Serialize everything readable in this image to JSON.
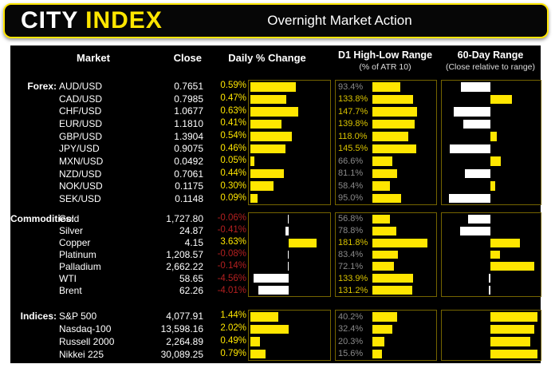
{
  "header": {
    "logo_city": "CITY",
    "logo_index": "INDEX",
    "title": "Overnight Market Action"
  },
  "columns": {
    "market": "Market",
    "close": "Close",
    "daily": "Daily % Change",
    "d1": "D1 High-Low Range",
    "d1_sub": "(% of ATR 10)",
    "range60": "60-Day Range",
    "range60_sub": "(Close relative to range)"
  },
  "colors": {
    "accent_yellow": "#ffe600",
    "negative_red": "#b32020",
    "muted_gray": "#8a8a8a",
    "bar_white": "#ffffff",
    "panel_black": "#000000",
    "box_border_olive": "#756400"
  },
  "chart_data": {
    "type": "table",
    "title": "Overnight Market Action",
    "legend": "Bars: daily % change (yellow = up, white = down), D1 high-low range as % of ATR 10 (yellow value >= 100%), close position within 60-day range (white = below midpoint, yellow = above midpoint)",
    "sections": [
      {
        "label": "Forex:",
        "daily_axis": {
          "min": 0,
          "max": 1.0
        },
        "d1_axis_max": 200,
        "range60_axis": {
          "min": 0,
          "mid": 50,
          "max": 100
        },
        "rows": [
          {
            "market": "AUD/USD",
            "close": "0.7651",
            "daily_pct": 0.59,
            "daily_label": "0.59%",
            "d1_pct": 93.4,
            "d1_label": "93.4%",
            "range60_pct": 19
          },
          {
            "market": "CAD/USD",
            "close": "0.7985",
            "daily_pct": 0.47,
            "daily_label": "0.47%",
            "d1_pct": 133.8,
            "d1_label": "133.8%",
            "range60_pct": 73
          },
          {
            "market": "CHF/USD",
            "close": "1.0677",
            "daily_pct": 0.63,
            "daily_label": "0.63%",
            "d1_pct": 147.7,
            "d1_label": "147.7%",
            "range60_pct": 11
          },
          {
            "market": "EUR/USD",
            "close": "1.1810",
            "daily_pct": 0.41,
            "daily_label": "0.41%",
            "d1_pct": 139.8,
            "d1_label": "139.8%",
            "range60_pct": 21
          },
          {
            "market": "GBP/USD",
            "close": "1.3904",
            "daily_pct": 0.54,
            "daily_label": "0.54%",
            "d1_pct": 118.0,
            "d1_label": "118.0%",
            "range60_pct": 57
          },
          {
            "market": "JPY/USD",
            "close": "0.9075",
            "daily_pct": 0.46,
            "daily_label": "0.46%",
            "d1_pct": 145.5,
            "d1_label": "145.5%",
            "range60_pct": 7
          },
          {
            "market": "MXN/USD",
            "close": "0.0492",
            "daily_pct": 0.05,
            "daily_label": "0.05%",
            "d1_pct": 66.6,
            "d1_label": "66.6%",
            "range60_pct": 61
          },
          {
            "market": "NZD/USD",
            "close": "0.7061",
            "daily_pct": 0.44,
            "daily_label": "0.44%",
            "d1_pct": 81.1,
            "d1_label": "81.1%",
            "range60_pct": 23
          },
          {
            "market": "NOK/USD",
            "close": "0.1175",
            "daily_pct": 0.3,
            "daily_label": "0.30%",
            "d1_pct": 58.4,
            "d1_label": "58.4%",
            "range60_pct": 55
          },
          {
            "market": "SEK/USD",
            "close": "0.1148",
            "daily_pct": 0.09,
            "daily_label": "0.09%",
            "d1_pct": 95.0,
            "d1_label": "95.0%",
            "range60_pct": 6
          }
        ]
      },
      {
        "label": "Commodities:",
        "daily_axis": {
          "min": -5,
          "max": 5
        },
        "d1_axis_max": 200,
        "range60_axis": {
          "min": 0,
          "mid": 50,
          "max": 100
        },
        "rows": [
          {
            "market": "Gold",
            "close": "1,727.80",
            "daily_pct": -0.06,
            "daily_label": "-0.06%",
            "d1_pct": 56.8,
            "d1_label": "56.8%",
            "range60_pct": 26
          },
          {
            "market": "Silver",
            "close": "24.87",
            "daily_pct": -0.41,
            "daily_label": "-0.41%",
            "d1_pct": 78.8,
            "d1_label": "78.8%",
            "range60_pct": 18
          },
          {
            "market": "Copper",
            "close": "4.15",
            "daily_pct": 3.63,
            "daily_label": "3.63%",
            "d1_pct": 181.8,
            "d1_label": "181.8%",
            "range60_pct": 81
          },
          {
            "market": "Platinum",
            "close": "1,208.57",
            "daily_pct": -0.08,
            "daily_label": "-0.08%",
            "d1_pct": 83.4,
            "d1_label": "83.4%",
            "range60_pct": 60
          },
          {
            "market": "Palladium",
            "close": "2,662.22",
            "daily_pct": -0.14,
            "daily_label": "-0.14%",
            "d1_pct": 72.1,
            "d1_label": "72.1%",
            "range60_pct": 97
          },
          {
            "market": "WTI",
            "close": "58.65",
            "daily_pct": -4.56,
            "daily_label": "-4.56%",
            "d1_pct": 133.9,
            "d1_label": "133.9%",
            "range60_pct": 48
          },
          {
            "market": "Brent",
            "close": "62.26",
            "daily_pct": -4.01,
            "daily_label": "-4.01%",
            "d1_pct": 131.2,
            "d1_label": "131.2%",
            "range60_pct": 50
          }
        ]
      },
      {
        "label": "Indices:",
        "daily_axis": {
          "min": 0,
          "max": 4.0
        },
        "d1_axis_max": 100,
        "range60_axis": {
          "min": 0,
          "mid": 50,
          "max": 100
        },
        "rows": [
          {
            "market": "S&P 500",
            "close": "4,077.91",
            "daily_pct": 1.44,
            "daily_label": "1.44%",
            "d1_pct": 40.2,
            "d1_label": "40.2%",
            "range60_pct": 100
          },
          {
            "market": "Nasdaq-100",
            "close": "13,598.16",
            "daily_pct": 2.02,
            "daily_label": "2.02%",
            "d1_pct": 32.4,
            "d1_label": "32.4%",
            "range60_pct": 97
          },
          {
            "market": "Russell 2000",
            "close": "2,264.89",
            "daily_pct": 0.49,
            "daily_label": "0.49%",
            "d1_pct": 20.3,
            "d1_label": "20.3%",
            "range60_pct": 92
          },
          {
            "market": "Nikkei 225",
            "close": "30,089.25",
            "daily_pct": 0.79,
            "daily_label": "0.79%",
            "d1_pct": 15.6,
            "d1_label": "15.6%",
            "range60_pct": 100
          }
        ]
      }
    ]
  }
}
